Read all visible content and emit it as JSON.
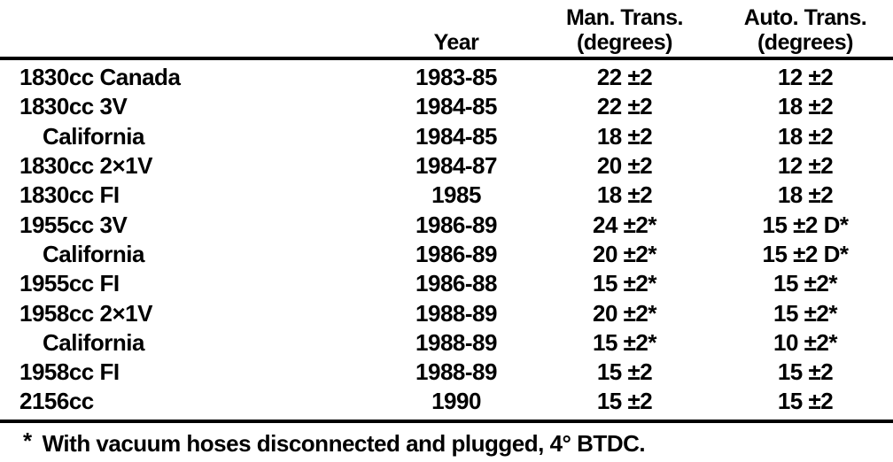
{
  "document": {
    "headers": {
      "engine": "",
      "year": "Year",
      "man_line1": "Man. Trans.",
      "man_line2": "(degrees)",
      "auto_line1": "Auto. Trans.",
      "auto_line2": "(degrees)"
    },
    "rows": [
      {
        "engine": "1830cc Canada",
        "year": "1983-85",
        "man": "22 ±2",
        "auto": "12 ±2"
      },
      {
        "engine": "1830cc 3V",
        "year": "1984-85",
        "man": "22 ±2",
        "auto": "18 ±2"
      },
      {
        "engine": "California",
        "year": "1984-85",
        "man": "18 ±2",
        "auto": "18 ±2"
      },
      {
        "engine": "1830cc 2×1V",
        "year": "1984-87",
        "man": "20 ±2",
        "auto": "12 ±2"
      },
      {
        "engine": "1830cc FI",
        "year": "1985",
        "man": "18 ±2",
        "auto": "18 ±2"
      },
      {
        "engine": "1955cc 3V",
        "year": "1986-89",
        "man": "24 ±2*",
        "auto": "15 ±2 D*"
      },
      {
        "engine": "California",
        "year": "1986-89",
        "man": "20 ±2*",
        "auto": "15 ±2 D*"
      },
      {
        "engine": "1955cc FI",
        "year": "1986-88",
        "man": "15 ±2*",
        "auto": "15 ±2*"
      },
      {
        "engine": "1958cc 2×1V",
        "year": "1988-89",
        "man": "20 ±2*",
        "auto": "15 ±2*"
      },
      {
        "engine": "California",
        "year": "1988-89",
        "man": "15 ±2*",
        "auto": "10 ±2*"
      },
      {
        "engine": "1958cc FI",
        "year": "1988-89",
        "man": "15 ±2",
        "auto": "15 ±2"
      },
      {
        "engine": "2156cc",
        "year": "1990",
        "man": "15 ±2",
        "auto": "15 ±2"
      }
    ],
    "footnote": {
      "marker": "*",
      "text": "With vacuum hoses disconnected and plugged, 4° BTDC."
    }
  },
  "colors": {
    "text": "#000000",
    "background": "#ffffff",
    "rule": "#000000"
  }
}
